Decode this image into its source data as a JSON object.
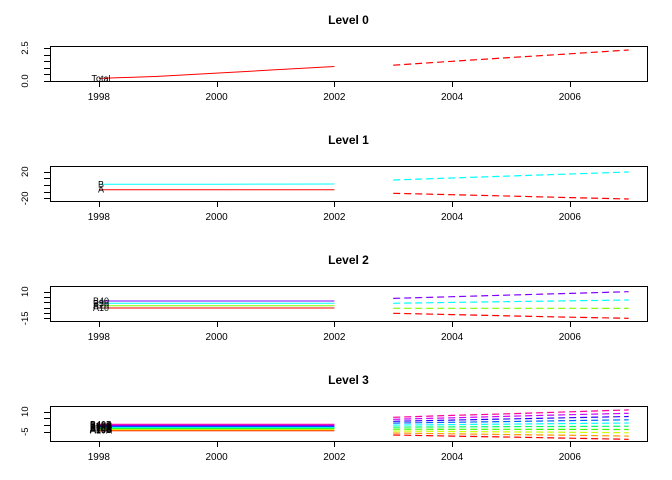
{
  "figure": {
    "background": "#FFFFFF",
    "axis_color": "#000000",
    "text_color": "#000000"
  },
  "chart_data": [
    {
      "type": "line",
      "title": "Level 0",
      "xlabel": "",
      "ylabel": "",
      "xlim": [
        1997.17,
        2007.31
      ],
      "ylim": [
        0,
        2.65
      ],
      "x_history": [
        1998,
        1999,
        2000,
        2001,
        2002
      ],
      "x_forecast": [
        2003,
        2004,
        2005,
        2006,
        2007
      ],
      "xticks": [
        1998,
        2000,
        2002,
        2004,
        2006
      ],
      "yticks": [
        0,
        0.5,
        1,
        1.5,
        2,
        2.5
      ],
      "ytick_labeled": [
        {
          "value": 0,
          "label": "0.0"
        },
        {
          "value": 2.5,
          "label": "2.5"
        }
      ],
      "grid": false,
      "legend": "series labels drawn at line start",
      "series": [
        {
          "name": "Total",
          "color": "#FF0000",
          "history": [
            0.2,
            0.35,
            0.6,
            0.85,
            1.1
          ],
          "forecast": [
            1.2,
            1.49,
            1.78,
            2.06,
            2.35
          ]
        }
      ]
    },
    {
      "type": "line",
      "title": "Level 1",
      "xlabel": "",
      "ylabel": "",
      "xlim": [
        1997.17,
        2007.31
      ],
      "ylim": [
        -24,
        28.5
      ],
      "x_history": [
        1998,
        1999,
        2000,
        2001,
        2002
      ],
      "x_forecast": [
        2003,
        2004,
        2005,
        2006,
        2007
      ],
      "xticks": [
        1998,
        2000,
        2002,
        2004,
        2006
      ],
      "yticks": [
        -20,
        -10,
        0,
        10,
        20
      ],
      "ytick_labeled": [
        {
          "value": -20,
          "label": "-20"
        },
        {
          "value": 20,
          "label": "20"
        }
      ],
      "grid": false,
      "legend": "series labels drawn at line start",
      "series": [
        {
          "name": "A",
          "color": "#FF0000",
          "history": [
            -7,
            -7,
            -7,
            -7,
            -7
          ],
          "forecast": [
            -12.5,
            -14.6,
            -16.7,
            -18.9,
            -21
          ]
        },
        {
          "name": "B",
          "color": "#00FFFF",
          "history": [
            1,
            1.1,
            1.2,
            1.3,
            1.5
          ],
          "forecast": [
            7.5,
            10.5,
            13.5,
            16.5,
            19.5
          ]
        }
      ]
    },
    {
      "type": "line",
      "title": "Level 2",
      "xlabel": "",
      "ylabel": "",
      "xlim": [
        1997.17,
        2007.31
      ],
      "ylim": [
        -17.5,
        15.3
      ],
      "x_history": [
        1998,
        1999,
        2000,
        2001,
        2002
      ],
      "x_forecast": [
        2003,
        2004,
        2005,
        2006,
        2007
      ],
      "xticks": [
        1998,
        2000,
        2002,
        2004,
        2006
      ],
      "yticks": [
        -15,
        -10,
        -5,
        0,
        5,
        10
      ],
      "ytick_labeled": [
        {
          "value": -15,
          "label": "-15"
        },
        {
          "value": 10,
          "label": "10"
        }
      ],
      "grid": false,
      "legend": "series labels drawn at line start",
      "series": [
        {
          "name": "A10",
          "color": "#FF0000",
          "history": [
            -5.3,
            -5.3,
            -5.3,
            -5.3,
            -5.3
          ],
          "forecast": [
            -10.3,
            -11.5,
            -12.7,
            -13.9,
            -15
          ]
        },
        {
          "name": "A20",
          "color": "#80FF00",
          "history": [
            -3.2,
            -3.2,
            -3.2,
            -3.2,
            -3.2
          ],
          "forecast": [
            -5.6,
            -5.6,
            -5.6,
            -5.6,
            -5.7
          ]
        },
        {
          "name": "B30",
          "color": "#00FFFF",
          "history": [
            -0.9,
            -0.9,
            -0.9,
            -0.9,
            -0.9
          ],
          "forecast": [
            -0.9,
            -0.1,
            0.7,
            1.4,
            2.2
          ]
        },
        {
          "name": "B40",
          "color": "#8000FF",
          "history": [
            1.2,
            1.2,
            1.2,
            1.2,
            1.2
          ],
          "forecast": [
            3.7,
            5.3,
            6.9,
            8.4,
            10
          ]
        }
      ]
    },
    {
      "type": "line",
      "title": "Level 3",
      "xlabel": "",
      "ylabel": "",
      "xlim": [
        1997.17,
        2007.31
      ],
      "ylim": [
        -12,
        14.25
      ],
      "x_history": [
        1998,
        1999,
        2000,
        2001,
        2002
      ],
      "x_forecast": [
        2003,
        2004,
        2005,
        2006,
        2007
      ],
      "xticks": [
        1998,
        2000,
        2002,
        2004,
        2006
      ],
      "yticks": [
        -5,
        0,
        5,
        10
      ],
      "ytick_labeled": [
        {
          "value": -5,
          "label": "-5"
        },
        {
          "value": 10,
          "label": "10"
        }
      ],
      "grid": false,
      "legend": "series labels drawn at line start",
      "series": [
        {
          "name": "A10A",
          "color": "#FF0000",
          "history": [
            -4.3,
            -4.3,
            -4.3,
            -4.3,
            -4.3
          ],
          "forecast": [
            -7.5,
            -8.3,
            -9.1,
            -9.9,
            -10.7
          ]
        },
        {
          "name": "A10B",
          "color": "#FF9900",
          "history": [
            -3.8,
            -3.8,
            -3.8,
            -3.8,
            -3.8
          ],
          "forecast": [
            -6.0,
            -6.6,
            -7.2,
            -7.7,
            -8.3
          ]
        },
        {
          "name": "A10C",
          "color": "#CCFF00",
          "history": [
            -3.2,
            -3.2,
            -3.2,
            -3.2,
            -3.2
          ],
          "forecast": [
            -4.5,
            -4.9,
            -5.2,
            -5.5,
            -5.8
          ]
        },
        {
          "name": "A20A",
          "color": "#33FF00",
          "history": [
            -2.7,
            -2.7,
            -2.7,
            -2.7,
            -2.7
          ],
          "forecast": [
            -3.1,
            -3.2,
            -3.2,
            -3.3,
            -3.4
          ]
        },
        {
          "name": "A20B",
          "color": "#00FF66",
          "history": [
            -2.2,
            -2.2,
            -2.2,
            -2.2,
            -2.2
          ],
          "forecast": [
            -1.6,
            -1.4,
            -1.2,
            -1.1,
            -0.9
          ]
        },
        {
          "name": "B30A",
          "color": "#00FFFF",
          "history": [
            -1.7,
            -1.7,
            -1.7,
            -1.7,
            -1.7
          ],
          "forecast": [
            -0.1,
            0.3,
            0.7,
            1.1,
            1.5
          ]
        },
        {
          "name": "B30B",
          "color": "#0066FF",
          "history": [
            -1.1,
            -1.1,
            -1.1,
            -1.1,
            -1.1
          ],
          "forecast": [
            1.4,
            2.0,
            2.6,
            3.3,
            3.9
          ]
        },
        {
          "name": "B30C",
          "color": "#3300FF",
          "history": [
            -0.6,
            -0.6,
            -0.6,
            -0.6,
            -0.6
          ],
          "forecast": [
            2.8,
            3.7,
            4.6,
            5.5,
            6.4
          ]
        },
        {
          "name": "B40A",
          "color": "#CC00FF",
          "history": [
            -0.1,
            -0.1,
            -0.1,
            -0.1,
            -0.1
          ],
          "forecast": [
            4.3,
            5.4,
            6.6,
            7.7,
            8.8
          ]
        },
        {
          "name": "B40B",
          "color": "#FF0099",
          "history": [
            0.5,
            0.5,
            0.5,
            0.5,
            0.5
          ],
          "forecast": [
            5.8,
            7.2,
            8.5,
            9.9,
            11.3
          ]
        }
      ]
    }
  ]
}
